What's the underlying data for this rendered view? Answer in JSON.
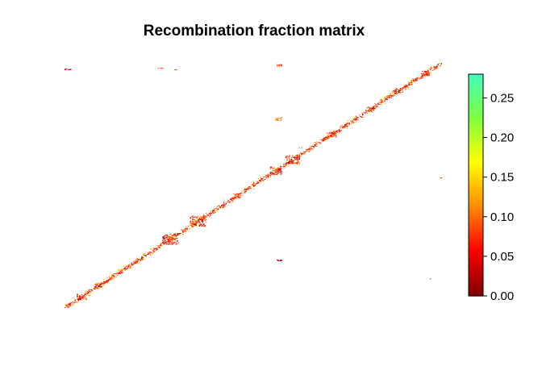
{
  "chart_data": {
    "type": "heatmap",
    "title": "Recombination fraction matrix",
    "xlabel": "",
    "ylabel": "",
    "color_scale": {
      "min": 0.0,
      "max": 0.28,
      "ticks": [
        0.0,
        0.05,
        0.1,
        0.15,
        0.2,
        0.25
      ],
      "tick_labels": [
        "0.00",
        "0.05",
        "0.10",
        "0.15",
        "0.20",
        "0.25"
      ],
      "colors": [
        "#800000",
        "#ff0000",
        "#ff8c00",
        "#ffff00",
        "#7fff40",
        "#40ffc0"
      ]
    },
    "matrix": {
      "n_markers": 340,
      "diagonal_band": "high density of low recombination fraction values near the diagonal",
      "grid": false
    }
  }
}
